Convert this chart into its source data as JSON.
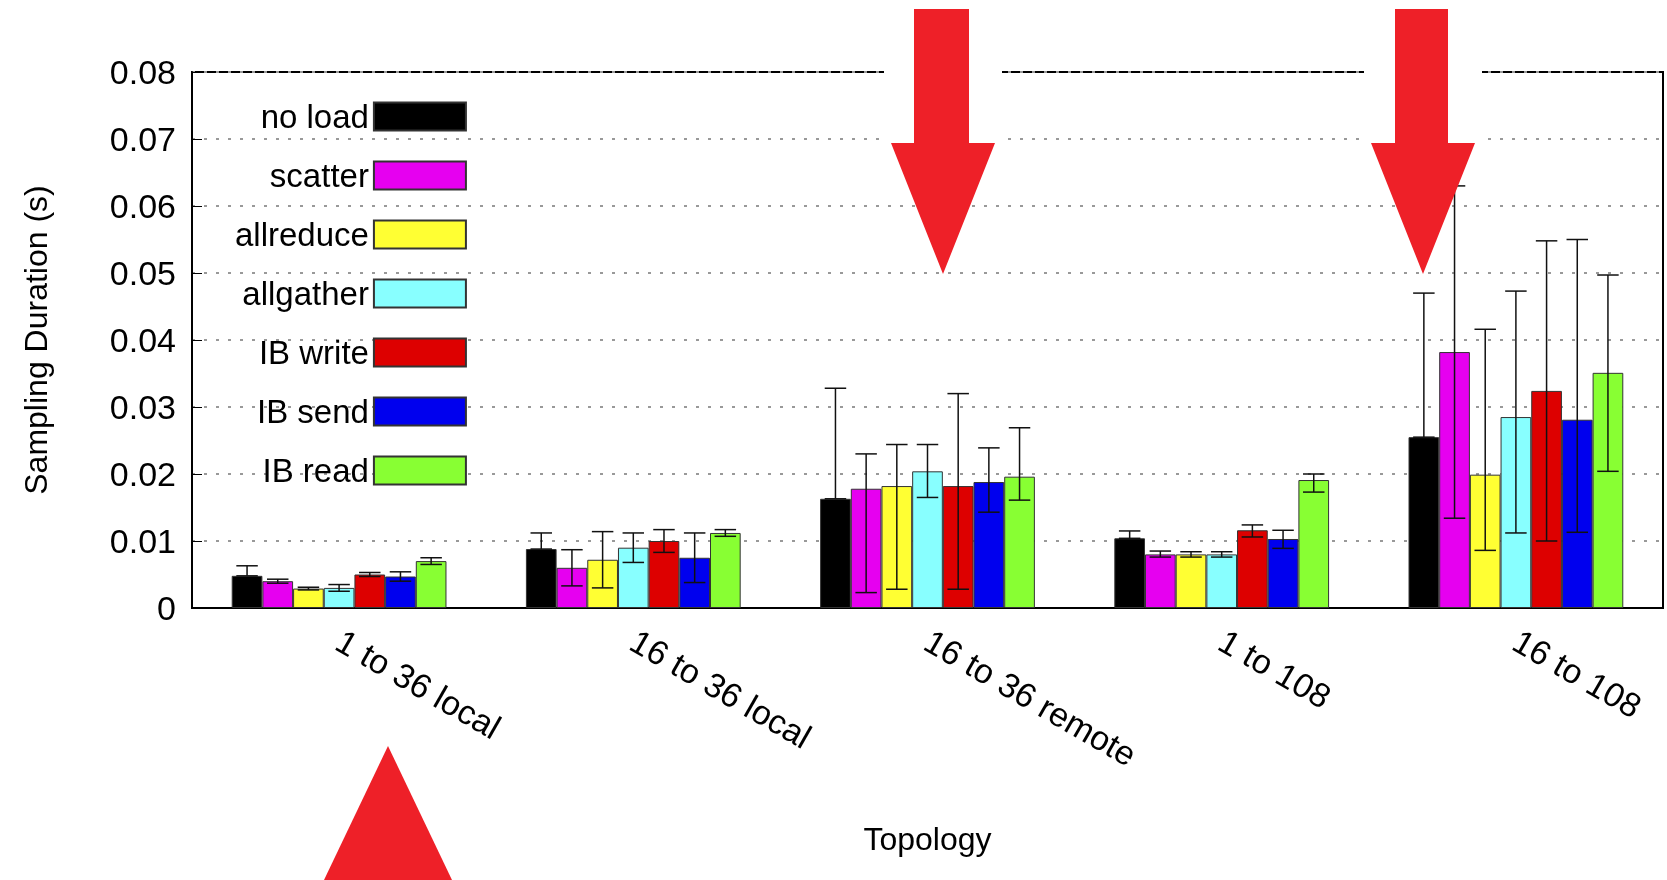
{
  "chart_data": {
    "type": "bar",
    "xlabel": "Topology",
    "ylabel": "Sampling Duration (s)",
    "categories": [
      "1 to 36 local",
      "16 to 36 local",
      "16 to 36 remote",
      "1 to 108",
      "16 to 108"
    ],
    "series": [
      {
        "name": "no load",
        "color": "#000000",
        "values": [
          0.0048,
          0.0088,
          0.0163,
          0.0104,
          0.0255
        ],
        "errors": [
          [
            0.0048,
            0.0063
          ],
          [
            0.0088,
            0.0112
          ],
          [
            0.0163,
            0.0328
          ],
          [
            0.0104,
            0.0115
          ],
          [
            0.0255,
            0.047
          ]
        ]
      },
      {
        "name": "scatter",
        "color": "#e600f0",
        "values": [
          0.004,
          0.006,
          0.0178,
          0.008,
          0.0382
        ],
        "errors": [
          [
            0.0037,
            0.0043
          ],
          [
            0.0033,
            0.0087
          ],
          [
            0.0023,
            0.023
          ],
          [
            0.0076,
            0.0085
          ],
          [
            0.0134,
            0.063
          ]
        ]
      },
      {
        "name": "allreduce",
        "color": "#ffff33",
        "values": [
          0.0029,
          0.0072,
          0.0182,
          0.008,
          0.0199
        ],
        "errors": [
          [
            0.0027,
            0.0031
          ],
          [
            0.003,
            0.0114
          ],
          [
            0.0028,
            0.0244
          ],
          [
            0.0076,
            0.0084
          ],
          [
            0.0086,
            0.0416
          ]
        ]
      },
      {
        "name": "allgather",
        "color": "#88ffff",
        "values": [
          0.003,
          0.009,
          0.0204,
          0.008,
          0.0285
        ],
        "errors": [
          [
            0.0025,
            0.0035
          ],
          [
            0.0068,
            0.0112
          ],
          [
            0.0165,
            0.0244
          ],
          [
            0.0076,
            0.0084
          ],
          [
            0.0112,
            0.0473
          ]
        ]
      },
      {
        "name": "IB write",
        "color": "#dd0000",
        "values": [
          0.005,
          0.01,
          0.0182,
          0.0116,
          0.0324
        ],
        "errors": [
          [
            0.0047,
            0.0053
          ],
          [
            0.0083,
            0.0117
          ],
          [
            0.0028,
            0.032
          ],
          [
            0.0106,
            0.0124
          ],
          [
            0.01,
            0.0548
          ]
        ]
      },
      {
        "name": "IB send",
        "color": "#0000ee",
        "values": [
          0.0047,
          0.0075,
          0.0188,
          0.0103,
          0.0281
        ],
        "errors": [
          [
            0.004,
            0.0054
          ],
          [
            0.0038,
            0.0112
          ],
          [
            0.0143,
            0.0239
          ],
          [
            0.0089,
            0.0116
          ],
          [
            0.0113,
            0.055
          ]
        ]
      },
      {
        "name": "IB read",
        "color": "#88ff33",
        "values": [
          0.007,
          0.0112,
          0.0196,
          0.0191,
          0.0351
        ],
        "errors": [
          [
            0.0065,
            0.0075
          ],
          [
            0.0107,
            0.0117
          ],
          [
            0.0161,
            0.0269
          ],
          [
            0.0173,
            0.02
          ],
          [
            0.0204,
            0.0497
          ]
        ]
      }
    ],
    "ylim": [
      0,
      0.08
    ],
    "yticks": [
      0,
      0.01,
      0.02,
      0.03,
      0.04,
      0.05,
      0.06,
      0.07,
      0.08
    ],
    "grid": "y",
    "legend": "top left"
  }
}
